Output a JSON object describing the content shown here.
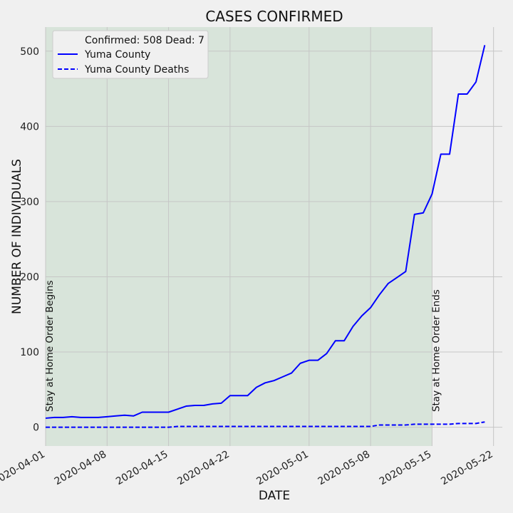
{
  "chart_data": {
    "type": "line",
    "title": "CASES CONFIRMED",
    "xlabel": "DATE",
    "ylabel": "NUMBER OF INDIVIDUALS",
    "x_type": "date",
    "xlim": [
      "2020-04-01",
      "2020-05-23"
    ],
    "ylim": [
      -25,
      532
    ],
    "x_ticks": [
      "2020-04-01",
      "2020-04-08",
      "2020-04-15",
      "2020-04-22",
      "2020-05-01",
      "2020-05-08",
      "2020-05-15",
      "2020-05-22"
    ],
    "y_ticks": [
      0,
      100,
      200,
      300,
      400,
      500
    ],
    "grid": true,
    "legend": {
      "placement": "upper-left",
      "header": "Confirmed: 508 Dead: 7"
    },
    "shaded_region": {
      "start": "2020-04-01",
      "end": "2020-05-15",
      "color": "#d8e4da"
    },
    "annotations": [
      {
        "text": "Stay at Home Order Begins",
        "date": "2020-04-01"
      },
      {
        "text": "Stay at Home Order Ends",
        "date": "2020-05-15"
      }
    ],
    "series": [
      {
        "name": "Yuma County",
        "color": "#0000ff",
        "style": "solid",
        "points": [
          [
            "2020-04-01",
            12
          ],
          [
            "2020-04-02",
            13
          ],
          [
            "2020-04-03",
            13
          ],
          [
            "2020-04-04",
            14
          ],
          [
            "2020-04-05",
            13
          ],
          [
            "2020-04-06",
            13
          ],
          [
            "2020-04-07",
            13
          ],
          [
            "2020-04-08",
            14
          ],
          [
            "2020-04-09",
            15
          ],
          [
            "2020-04-10",
            16
          ],
          [
            "2020-04-11",
            15
          ],
          [
            "2020-04-12",
            20
          ],
          [
            "2020-04-13",
            20
          ],
          [
            "2020-04-14",
            20
          ],
          [
            "2020-04-15",
            20
          ],
          [
            "2020-04-16",
            24
          ],
          [
            "2020-04-17",
            28
          ],
          [
            "2020-04-18",
            29
          ],
          [
            "2020-04-19",
            29
          ],
          [
            "2020-04-20",
            31
          ],
          [
            "2020-04-21",
            32
          ],
          [
            "2020-04-22",
            42
          ],
          [
            "2020-04-23",
            42
          ],
          [
            "2020-04-24",
            42
          ],
          [
            "2020-04-25",
            53
          ],
          [
            "2020-04-26",
            59
          ],
          [
            "2020-04-27",
            62
          ],
          [
            "2020-04-28",
            67
          ],
          [
            "2020-04-29",
            72
          ],
          [
            "2020-04-30",
            85
          ],
          [
            "2020-05-01",
            89
          ],
          [
            "2020-05-02",
            89
          ],
          [
            "2020-05-03",
            98
          ],
          [
            "2020-05-04",
            115
          ],
          [
            "2020-05-05",
            115
          ],
          [
            "2020-05-06",
            134
          ],
          [
            "2020-05-07",
            148
          ],
          [
            "2020-05-08",
            159
          ],
          [
            "2020-05-09",
            176
          ],
          [
            "2020-05-10",
            191
          ],
          [
            "2020-05-11",
            199
          ],
          [
            "2020-05-12",
            207
          ],
          [
            "2020-05-13",
            283
          ],
          [
            "2020-05-14",
            285
          ],
          [
            "2020-05-15",
            310
          ],
          [
            "2020-05-16",
            363
          ],
          [
            "2020-05-17",
            363
          ],
          [
            "2020-05-18",
            443
          ],
          [
            "2020-05-19",
            443
          ],
          [
            "2020-05-20",
            459
          ],
          [
            "2020-05-21",
            508
          ]
        ]
      },
      {
        "name": "Yuma County Deaths",
        "color": "#0000ff",
        "style": "dashed",
        "points": [
          [
            "2020-04-01",
            0
          ],
          [
            "2020-04-05",
            0
          ],
          [
            "2020-04-10",
            0
          ],
          [
            "2020-04-15",
            0
          ],
          [
            "2020-04-16",
            1
          ],
          [
            "2020-04-22",
            1
          ],
          [
            "2020-05-01",
            1
          ],
          [
            "2020-05-08",
            1
          ],
          [
            "2020-05-09",
            3
          ],
          [
            "2020-05-12",
            3
          ],
          [
            "2020-05-13",
            4
          ],
          [
            "2020-05-17",
            4
          ],
          [
            "2020-05-18",
            5
          ],
          [
            "2020-05-20",
            5
          ],
          [
            "2020-05-21",
            7
          ]
        ]
      }
    ]
  }
}
